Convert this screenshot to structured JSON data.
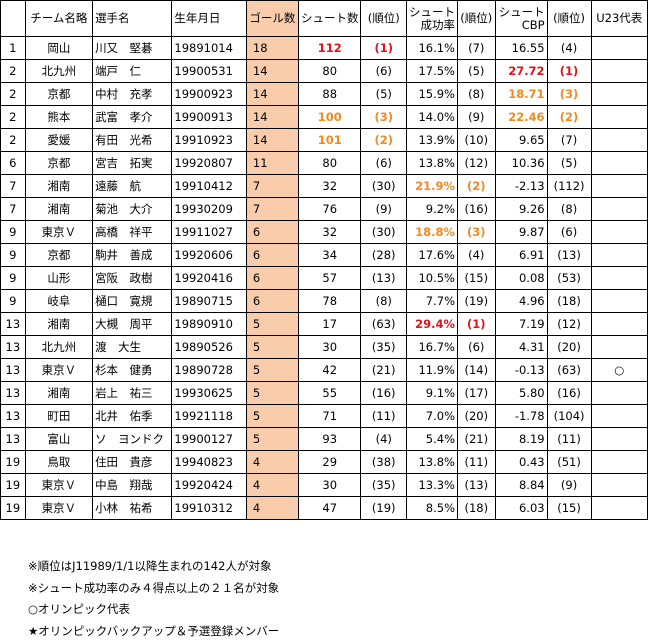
{
  "headers": [
    "",
    "チーム名略",
    "選手名",
    "生年月日",
    "ゴール数",
    "シュート数",
    "(順位)",
    "シュート\n成功率",
    "(順位)",
    "シュート\nCBP",
    "(順位)",
    "U23代表"
  ],
  "rows": [
    {
      "rank": "1",
      "team": "岡山",
      "name": "川又　堅碁",
      "birth": "19891014",
      "goals": "18",
      "shots": "112",
      "shots_rank": "(1)",
      "pct": "16.1%",
      "pct_rank": "(7)",
      "cbp": "16.55",
      "cbp_rank": "(4)",
      "u23": "",
      "hl": {
        "shots": "red",
        "shots_rank": "red"
      }
    },
    {
      "rank": "2",
      "team": "北九州",
      "name": "端戸　仁",
      "birth": "19900531",
      "goals": "14",
      "shots": "80",
      "shots_rank": "(6)",
      "pct": "17.5%",
      "pct_rank": "(5)",
      "cbp": "27.72",
      "cbp_rank": "(1)",
      "u23": "",
      "hl": {
        "cbp": "red",
        "cbp_rank": "red"
      }
    },
    {
      "rank": "2",
      "team": "京都",
      "name": "中村　充孝",
      "birth": "19900923",
      "goals": "14",
      "shots": "88",
      "shots_rank": "(5)",
      "pct": "15.9%",
      "pct_rank": "(8)",
      "cbp": "18.71",
      "cbp_rank": "(3)",
      "u23": "",
      "hl": {
        "cbp": "orange",
        "cbp_rank": "orange"
      }
    },
    {
      "rank": "2",
      "team": "熊本",
      "name": "武富　孝介",
      "birth": "19900913",
      "goals": "14",
      "shots": "100",
      "shots_rank": "(3)",
      "pct": "14.0%",
      "pct_rank": "(9)",
      "cbp": "22.46",
      "cbp_rank": "(2)",
      "u23": "",
      "hl": {
        "shots": "orange",
        "shots_rank": "orange",
        "cbp": "orange",
        "cbp_rank": "orange"
      }
    },
    {
      "rank": "2",
      "team": "愛媛",
      "name": "有田　光希",
      "birth": "19910923",
      "goals": "14",
      "shots": "101",
      "shots_rank": "(2)",
      "pct": "13.9%",
      "pct_rank": "(10)",
      "cbp": "9.65",
      "cbp_rank": "(7)",
      "u23": "",
      "hl": {
        "shots": "orange",
        "shots_rank": "orange"
      }
    },
    {
      "rank": "6",
      "team": "京都",
      "name": "宮吉　拓実",
      "birth": "19920807",
      "goals": "11",
      "shots": "80",
      "shots_rank": "(6)",
      "pct": "13.8%",
      "pct_rank": "(12)",
      "cbp": "10.36",
      "cbp_rank": "(5)",
      "u23": "",
      "hl": {}
    },
    {
      "rank": "7",
      "team": "湘南",
      "name": "遠藤　航",
      "birth": "19910412",
      "goals": "7",
      "shots": "32",
      "shots_rank": "(30)",
      "pct": "21.9%",
      "pct_rank": "(2)",
      "cbp": "-2.13",
      "cbp_rank": "(112)",
      "u23": "",
      "hl": {
        "pct": "orange",
        "pct_rank": "orange"
      }
    },
    {
      "rank": "7",
      "team": "湘南",
      "name": "菊池　大介",
      "birth": "19930209",
      "goals": "7",
      "shots": "76",
      "shots_rank": "(9)",
      "pct": "9.2%",
      "pct_rank": "(16)",
      "cbp": "9.26",
      "cbp_rank": "(8)",
      "u23": "",
      "hl": {}
    },
    {
      "rank": "9",
      "team": "東京Ｖ",
      "name": "高橋　祥平",
      "birth": "19911027",
      "goals": "6",
      "shots": "32",
      "shots_rank": "(30)",
      "pct": "18.8%",
      "pct_rank": "(3)",
      "cbp": "9.87",
      "cbp_rank": "(6)",
      "u23": "",
      "hl": {
        "pct": "orange",
        "pct_rank": "orange"
      }
    },
    {
      "rank": "9",
      "team": "京都",
      "name": "駒井　善成",
      "birth": "19920606",
      "goals": "6",
      "shots": "34",
      "shots_rank": "(28)",
      "pct": "17.6%",
      "pct_rank": "(4)",
      "cbp": "6.91",
      "cbp_rank": "(13)",
      "u23": "",
      "hl": {}
    },
    {
      "rank": "9",
      "team": "山形",
      "name": "宮阪　政樹",
      "birth": "19920416",
      "goals": "6",
      "shots": "57",
      "shots_rank": "(13)",
      "pct": "10.5%",
      "pct_rank": "(15)",
      "cbp": "0.08",
      "cbp_rank": "(53)",
      "u23": "",
      "hl": {}
    },
    {
      "rank": "9",
      "team": "岐阜",
      "name": "樋口　寛規",
      "birth": "19890715",
      "goals": "6",
      "shots": "78",
      "shots_rank": "(8)",
      "pct": "7.7%",
      "pct_rank": "(19)",
      "cbp": "4.96",
      "cbp_rank": "(18)",
      "u23": "",
      "hl": {}
    },
    {
      "rank": "13",
      "team": "湘南",
      "name": "大槻　周平",
      "birth": "19890910",
      "goals": "5",
      "shots": "17",
      "shots_rank": "(63)",
      "pct": "29.4%",
      "pct_rank": "(1)",
      "cbp": "7.19",
      "cbp_rank": "(12)",
      "u23": "",
      "hl": {
        "pct": "red",
        "pct_rank": "red"
      }
    },
    {
      "rank": "13",
      "team": "北九州",
      "name": "渡　大生",
      "birth": "19890526",
      "goals": "5",
      "shots": "30",
      "shots_rank": "(35)",
      "pct": "16.7%",
      "pct_rank": "(6)",
      "cbp": "4.31",
      "cbp_rank": "(20)",
      "u23": "",
      "hl": {}
    },
    {
      "rank": "13",
      "team": "東京Ｖ",
      "name": "杉本　健勇",
      "birth": "19890728",
      "goals": "5",
      "shots": "42",
      "shots_rank": "(21)",
      "pct": "11.9%",
      "pct_rank": "(14)",
      "cbp": "-0.13",
      "cbp_rank": "(63)",
      "u23": "○",
      "hl": {}
    },
    {
      "rank": "13",
      "team": "湘南",
      "name": "岩上　祐三",
      "birth": "19930625",
      "goals": "5",
      "shots": "55",
      "shots_rank": "(16)",
      "pct": "9.1%",
      "pct_rank": "(17)",
      "cbp": "5.80",
      "cbp_rank": "(16)",
      "u23": "",
      "hl": {}
    },
    {
      "rank": "13",
      "team": "町田",
      "name": "北井　佑季",
      "birth": "19921118",
      "goals": "5",
      "shots": "71",
      "shots_rank": "(11)",
      "pct": "7.0%",
      "pct_rank": "(20)",
      "cbp": "-1.78",
      "cbp_rank": "(104)",
      "u23": "",
      "hl": {}
    },
    {
      "rank": "13",
      "team": "富山",
      "name": "ソ　ヨンドク",
      "birth": "19900127",
      "goals": "5",
      "shots": "93",
      "shots_rank": "(4)",
      "pct": "5.4%",
      "pct_rank": "(21)",
      "cbp": "8.19",
      "cbp_rank": "(11)",
      "u23": "",
      "hl": {}
    },
    {
      "rank": "19",
      "team": "鳥取",
      "name": "住田　貴彦",
      "birth": "19940823",
      "goals": "4",
      "shots": "29",
      "shots_rank": "(38)",
      "pct": "13.8%",
      "pct_rank": "(11)",
      "cbp": "0.43",
      "cbp_rank": "(51)",
      "u23": "",
      "hl": {}
    },
    {
      "rank": "19",
      "team": "東京Ｖ",
      "name": "中島　翔哉",
      "birth": "19920424",
      "goals": "4",
      "shots": "30",
      "shots_rank": "(35)",
      "pct": "13.3%",
      "pct_rank": "(13)",
      "cbp": "8.84",
      "cbp_rank": "(9)",
      "u23": "",
      "hl": {}
    },
    {
      "rank": "19",
      "team": "東京Ｖ",
      "name": "小林　祐希",
      "birth": "19910312",
      "goals": "4",
      "shots": "47",
      "shots_rank": "(19)",
      "pct": "8.5%",
      "pct_rank": "(18)",
      "cbp": "6.03",
      "cbp_rank": "(15)",
      "u23": "",
      "hl": {}
    }
  ],
  "notes": [
    "※順位はJ11989/1/1以降生まれの142人が対象",
    "※シュート成功率のみ４得点以上の２１名が対象",
    "○オリンピック代表",
    "★オリンピックバックアップ＆予選登録メンバー"
  ],
  "colors": {
    "goals_bg": "#f9ccac",
    "red": "#e0141a",
    "orange": "#f28a21"
  }
}
